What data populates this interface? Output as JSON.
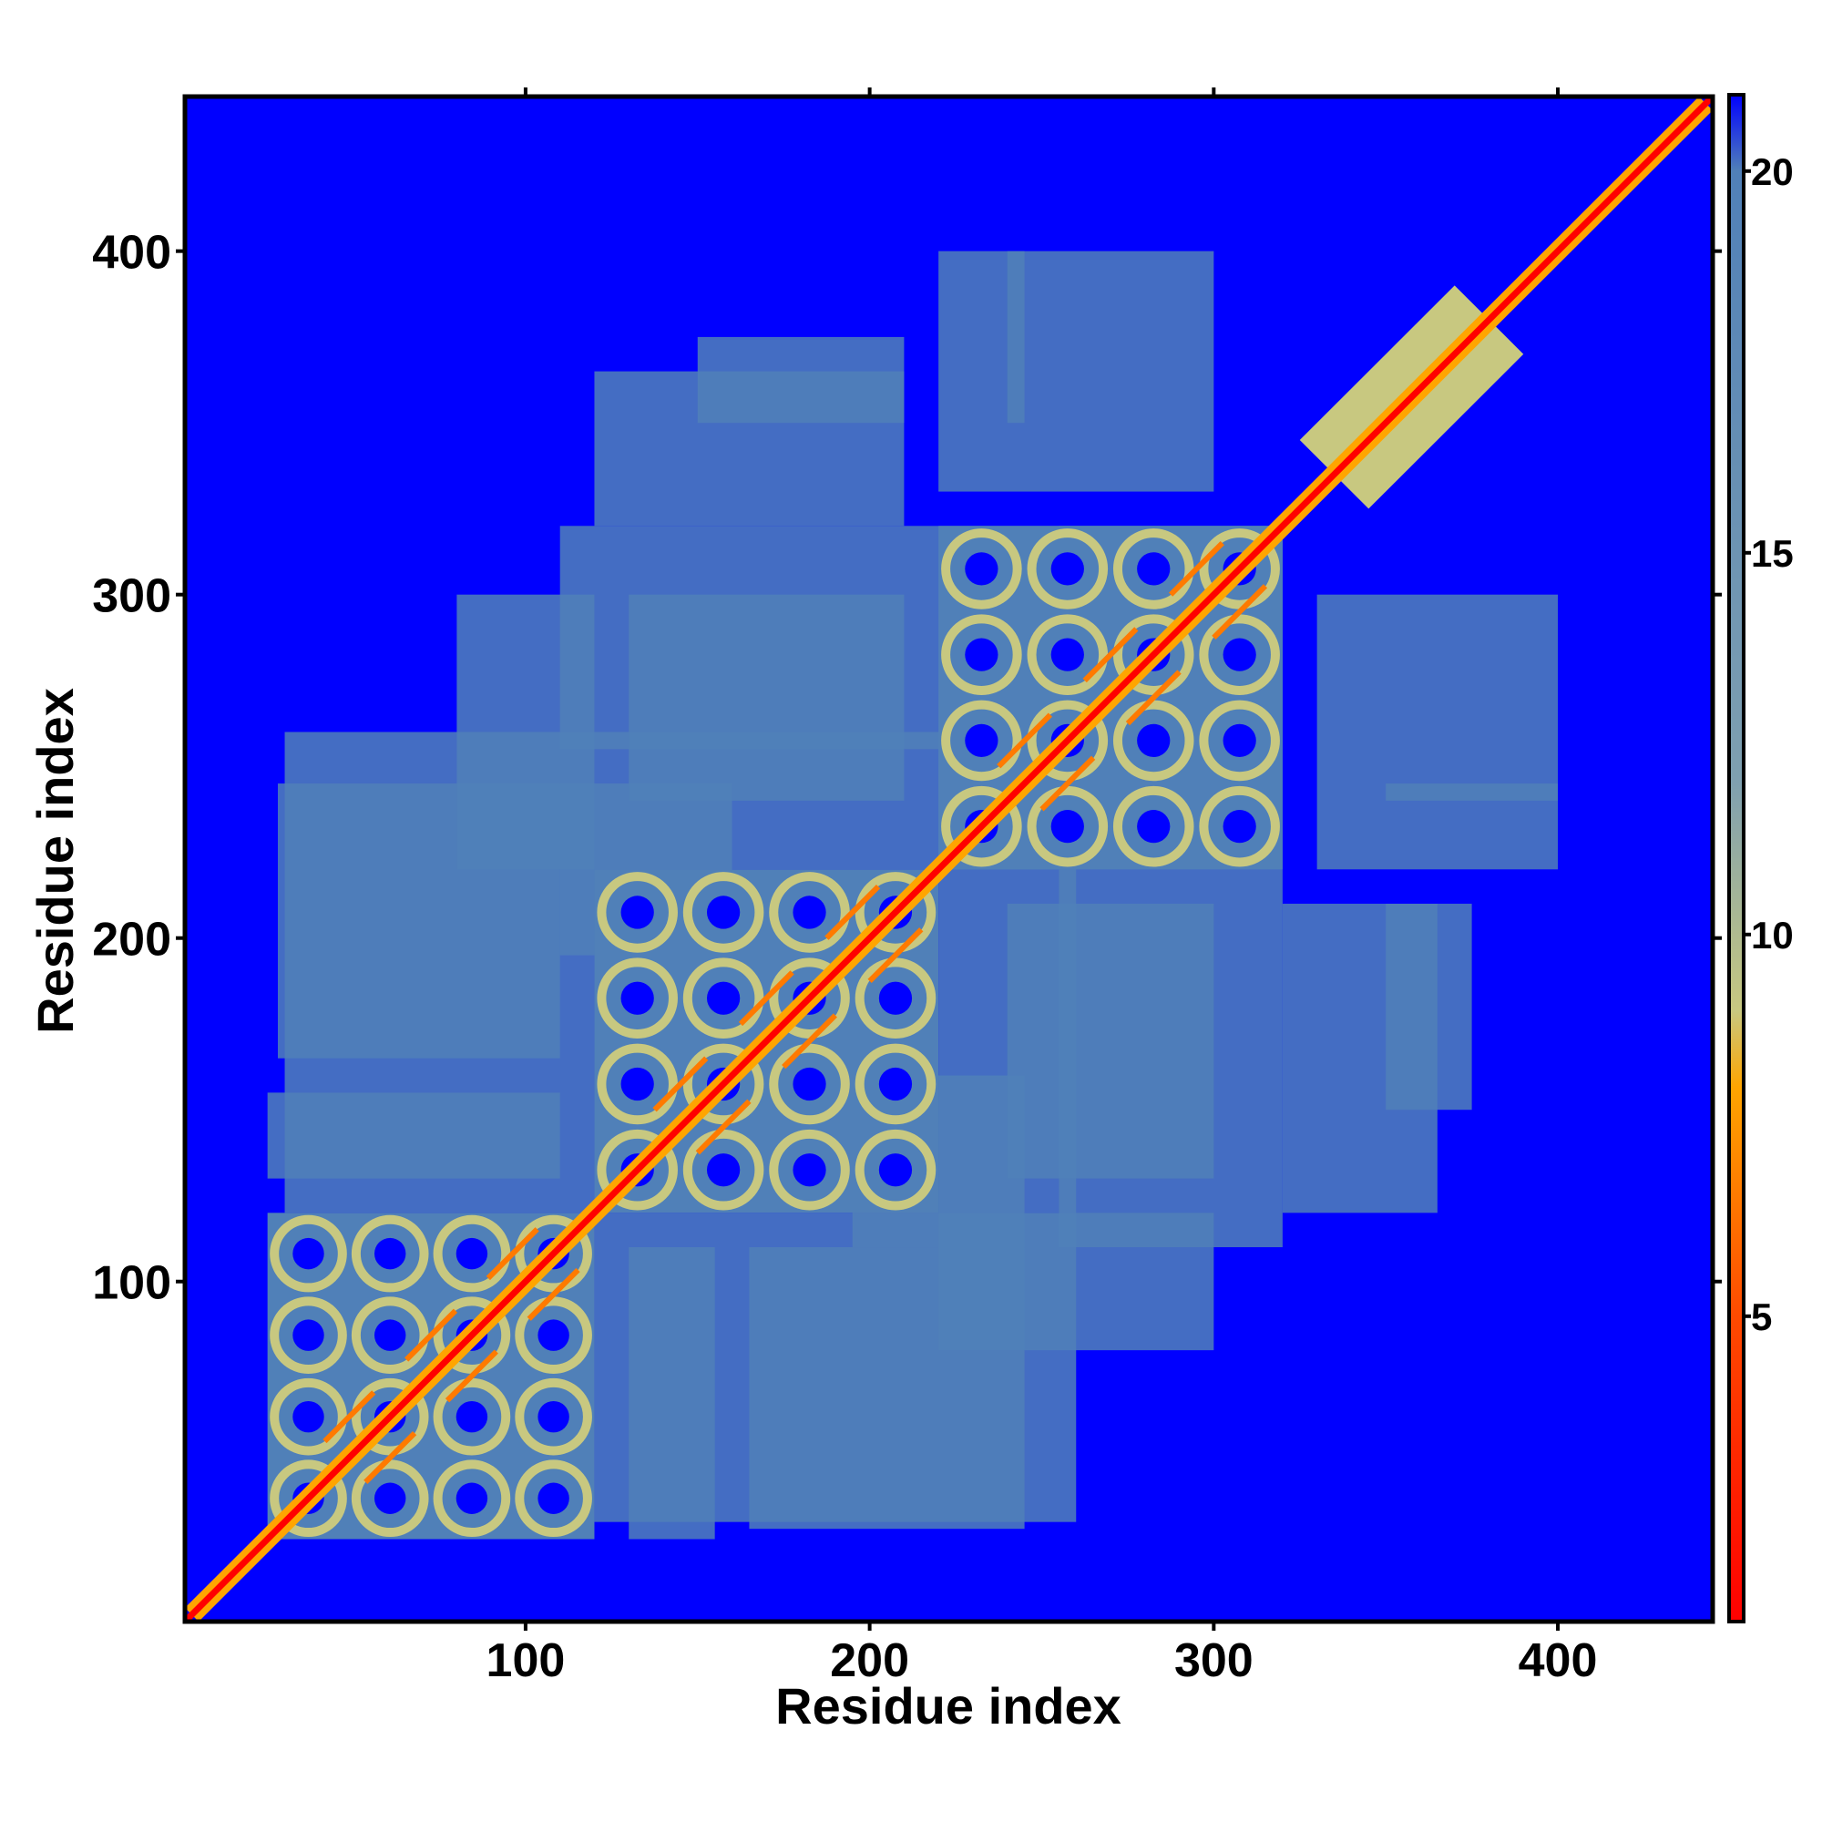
{
  "chart_data": {
    "type": "heatmap",
    "title": "",
    "xlabel": "Residue index",
    "ylabel": "Residue index",
    "xlim": [
      1,
      445
    ],
    "ylim": [
      1,
      445
    ],
    "x_ticks": [
      100,
      200,
      300,
      400
    ],
    "y_ticks": [
      100,
      200,
      300,
      400
    ],
    "x_tick_labels": [
      "100",
      "200",
      "300",
      "400"
    ],
    "y_tick_labels": [
      "100",
      "200",
      "300",
      "400"
    ],
    "colorbar": {
      "range": [
        1,
        21
      ],
      "ticks": [
        5,
        10,
        15,
        20
      ],
      "tick_labels": [
        "5",
        "10",
        "15",
        "20"
      ],
      "stops": [
        {
          "value": 1,
          "color": "#ff0000"
        },
        {
          "value": 5,
          "color": "#ff4a00"
        },
        {
          "value": 8,
          "color": "#ffa500"
        },
        {
          "value": 9,
          "color": "#c8c880"
        },
        {
          "value": 12,
          "color": "#7fa0b0"
        },
        {
          "value": 20,
          "color": "#5080b8"
        },
        {
          "value": 21,
          "color": "#0000ff"
        }
      ]
    },
    "background_value": 21,
    "diagonal": {
      "value": 1,
      "width": 4
    },
    "domains": [
      {
        "start": 25,
        "end": 120
      },
      {
        "start": 120,
        "end": 220
      },
      {
        "start": 220,
        "end": 320
      },
      {
        "start": 335,
        "end": 380
      }
    ],
    "contact_regions": [
      {
        "x": [
          25,
          110
        ],
        "y": [
          130,
          155
        ],
        "value": 13
      },
      {
        "x": [
          28,
          110
        ],
        "y": [
          165,
          245
        ],
        "value": 13
      },
      {
        "x": [
          110,
          160
        ],
        "y": [
          195,
          245
        ],
        "value": 13
      },
      {
        "x": [
          120,
          260
        ],
        "y": [
          220,
          260
        ],
        "value": 13
      },
      {
        "x": [
          110,
          320
        ],
        "y": [
          255,
          320
        ],
        "value": 13
      },
      {
        "x": [
          120,
          210
        ],
        "y": [
          320,
          365
        ],
        "value": 14
      },
      {
        "x": [
          220,
          300
        ],
        "y": [
          330,
          400
        ],
        "value": 16
      },
      {
        "x": [
          120,
          260
        ],
        "y": [
          30,
          120
        ],
        "value": 14
      },
      {
        "x": [
          220,
          300
        ],
        "y": [
          80,
          120
        ],
        "value": 14
      },
      {
        "x": [
          240,
          300
        ],
        "y": [
          130,
          210
        ],
        "value": 15
      },
      {
        "x": [
          350,
          400
        ],
        "y": [
          240,
          245
        ],
        "value": 16
      },
      {
        "x": [
          350,
          375
        ],
        "y": [
          150,
          210
        ],
        "value": 17
      }
    ]
  },
  "colors": {
    "background": "#0000ff",
    "contact_low": "#ff0000",
    "contact_mid": "#ffa500",
    "contact_far": "#5b86b6"
  }
}
